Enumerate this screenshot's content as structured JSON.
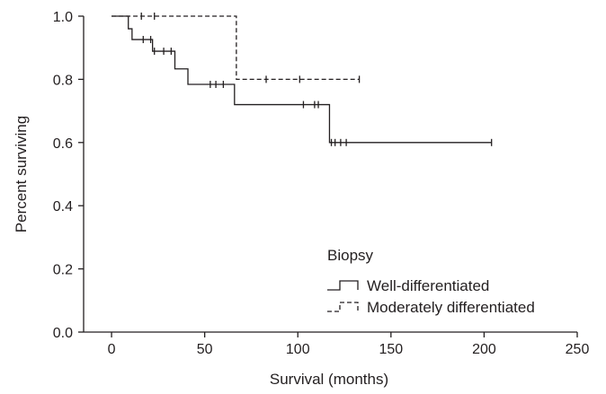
{
  "chart_data": {
    "type": "line",
    "xlabel": "Survival (months)",
    "ylabel": "Percent surviving",
    "xlim": [
      -15,
      250
    ],
    "ylim": [
      0.0,
      1.0
    ],
    "xticks": [
      0,
      50,
      100,
      150,
      200,
      250
    ],
    "yticks": [
      0.0,
      0.2,
      0.4,
      0.6,
      0.8,
      1.0
    ],
    "xtick_labels": [
      "0",
      "50",
      "100",
      "150",
      "200",
      "250"
    ],
    "ytick_labels": [
      "0.0",
      "0.2",
      "0.4",
      "0.6",
      "0.8",
      "1.0"
    ],
    "grid": false,
    "legend_title": "Biopsy",
    "legend_position": "lower-right",
    "series": [
      {
        "name": "Well-differentiated",
        "style": "solid",
        "color": "#231f20",
        "steps": [
          [
            0,
            1.0
          ],
          [
            9,
            0.96
          ],
          [
            11,
            0.926
          ],
          [
            22,
            0.889
          ],
          [
            27,
            0.889
          ],
          [
            34,
            0.833
          ],
          [
            41,
            0.784
          ],
          [
            66,
            0.72
          ],
          [
            117,
            0.6
          ],
          [
            204,
            0.6
          ]
        ],
        "censored": [
          [
            17,
            0.926
          ],
          [
            21,
            0.926
          ],
          [
            23,
            0.889
          ],
          [
            28,
            0.889
          ],
          [
            32,
            0.889
          ],
          [
            53,
            0.784
          ],
          [
            56,
            0.784
          ],
          [
            60,
            0.784
          ],
          [
            103,
            0.72
          ],
          [
            109,
            0.72
          ],
          [
            111,
            0.72
          ],
          [
            118,
            0.6
          ],
          [
            120,
            0.6
          ],
          [
            123,
            0.6
          ],
          [
            126,
            0.6
          ],
          [
            204,
            0.6
          ]
        ]
      },
      {
        "name": "Moderately differentiated",
        "style": "dashed",
        "color": "#231f20",
        "steps": [
          [
            0,
            1.0
          ],
          [
            67,
            0.8
          ],
          [
            133,
            0.8
          ]
        ],
        "censored": [
          [
            16,
            1.0
          ],
          [
            23,
            1.0
          ],
          [
            83,
            0.8
          ],
          [
            101,
            0.8
          ],
          [
            133,
            0.8
          ]
        ]
      }
    ]
  }
}
